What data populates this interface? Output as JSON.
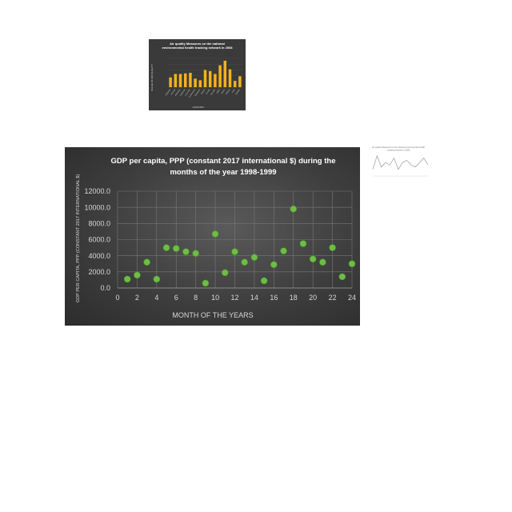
{
  "thumbnail_bar": {
    "title_line1": "Air quality Measures on the national",
    "title_line2": "environmental health tracking network in 2008",
    "ylabel": "VALUE OF AIR QUALITY",
    "xlabel": "COUNTRY",
    "categories": [
      "Alabama",
      "Arizona",
      "Arkansas",
      "California",
      "Colorado",
      "Connecticut",
      "Delaware",
      "District",
      "Florida",
      "Georgia",
      "Idaho",
      "Illinois",
      "Indiana",
      "Iowa",
      "Kansas"
    ],
    "values": [
      8.5,
      11.5,
      11.5,
      12,
      12.5,
      7.5,
      6,
      15,
      14,
      11.5,
      19,
      23,
      15.5,
      5.5,
      9.5
    ],
    "bar_color": "#f5b21b"
  },
  "thumbnail_line": {
    "title_line1": "Air quality Measures on the national environmental health",
    "title_line2": "tracking network in 2008",
    "values": [
      3,
      9,
      4,
      6,
      5,
      8,
      3,
      6,
      7,
      5,
      4,
      6,
      8,
      5
    ],
    "line_color": "#9a9a9a"
  },
  "chart_data": {
    "type": "scatter",
    "title": "GDP per capita, PPP (constant 2017 international $) during the months of the year 1998-1999",
    "title_line1": "GDP per capita, PPP (constant 2017 international $) during the",
    "title_line2": "months of the year 1998-1999",
    "xlabel": "MONTH OF THE YEARS",
    "ylabel": "GDP PER CAPITA, PPP (CONSTANT 2017 INTERNATIONAL $)",
    "xlim": [
      0,
      24
    ],
    "ylim": [
      0,
      12000
    ],
    "x_ticks": [
      "0",
      "2",
      "4",
      "6",
      "8",
      "10",
      "12",
      "14",
      "16",
      "18",
      "20",
      "22",
      "24"
    ],
    "y_ticks": [
      "0.0",
      "2000.0",
      "4000.0",
      "6000.0",
      "8000.0",
      "10000.0",
      "12000.0"
    ],
    "grid": true,
    "marker_color": "#6dbe45",
    "x": [
      1,
      2,
      3,
      4,
      5,
      6,
      7,
      8,
      9,
      10,
      11,
      12,
      13,
      14,
      15,
      16,
      17,
      18,
      19,
      20,
      21,
      22,
      23,
      24
    ],
    "y": [
      1100,
      1600,
      3200,
      1100,
      5000,
      4900,
      4500,
      4300,
      600,
      6700,
      1900,
      4500,
      3200,
      3800,
      900,
      2900,
      4600,
      9800,
      5500,
      3600,
      3200,
      5000,
      1400,
      3000
    ]
  }
}
